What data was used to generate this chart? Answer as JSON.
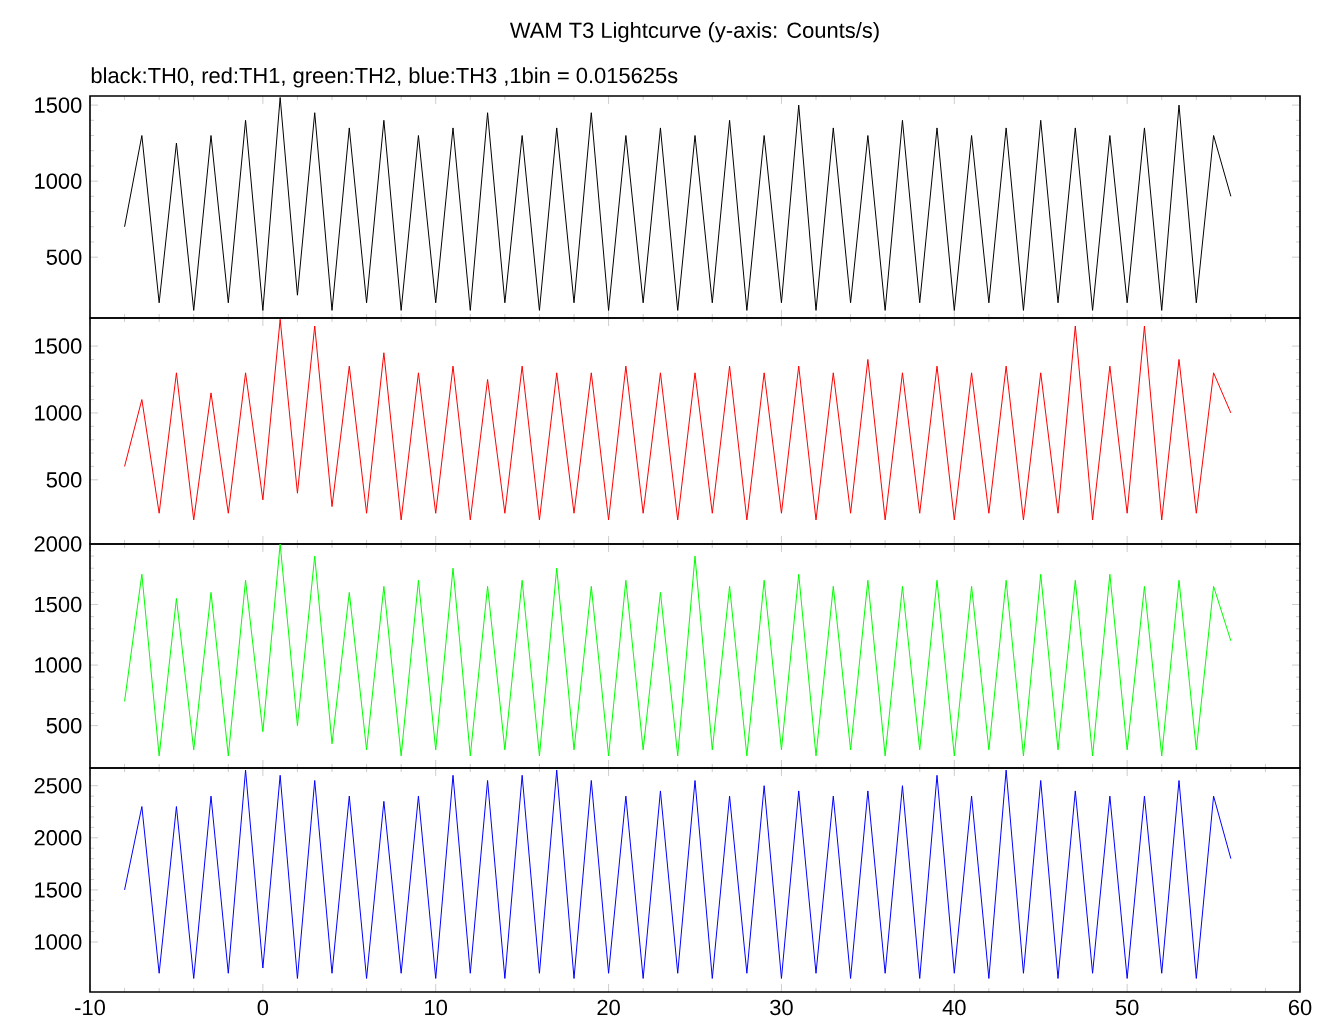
{
  "chart_data": [
    {
      "type": "line",
      "title": "WAM T3 Lightcurve (y-axis: Counts/s)",
      "subtitle": "black:TH0, red:TH1, green:TH2, blue:TH3 ,1bin = 0.015625s",
      "color": "#000000",
      "xlim": [
        -10,
        60
      ],
      "xticks": [
        -10,
        0,
        10,
        20,
        30,
        40,
        50,
        60
      ],
      "ylim": [
        100,
        1560
      ],
      "yticks": [
        500,
        1000,
        1500
      ],
      "tick_labels": "y",
      "x": [
        -8,
        -7,
        -6,
        -5,
        -4,
        -3,
        -2,
        -1,
        0,
        1,
        2,
        3,
        4,
        5,
        6,
        7,
        8,
        9,
        10,
        11,
        12,
        13,
        14,
        15,
        16,
        17,
        18,
        19,
        20,
        21,
        22,
        23,
        24,
        25,
        26,
        27,
        28,
        29,
        30,
        31,
        32,
        33,
        34,
        35,
        36,
        37,
        38,
        39,
        40,
        41,
        42,
        43,
        44,
        45,
        46,
        47,
        48,
        49,
        50,
        51,
        52,
        53,
        54,
        55,
        56
      ],
      "values": [
        700,
        1300,
        200,
        1250,
        150,
        1300,
        200,
        1400,
        150,
        1550,
        250,
        1450,
        150,
        1350,
        200,
        1400,
        150,
        1300,
        200,
        1350,
        150,
        1450,
        200,
        1300,
        150,
        1350,
        200,
        1450,
        150,
        1300,
        200,
        1350,
        150,
        1300,
        200,
        1400,
        150,
        1300,
        200,
        1500,
        150,
        1350,
        200,
        1300,
        150,
        1400,
        200,
        1350,
        150,
        1300,
        200,
        1350,
        150,
        1400,
        200,
        1350,
        150,
        1300,
        200,
        1350,
        150,
        1500,
        200,
        1300,
        900
      ]
    },
    {
      "type": "line",
      "color": "#ff0000",
      "xlim": [
        -10,
        60
      ],
      "xticks": [
        -10,
        0,
        10,
        20,
        30,
        40,
        50,
        60
      ],
      "ylim": [
        20,
        1710
      ],
      "yticks": [
        500,
        1000,
        1500
      ],
      "tick_labels": "y",
      "x": [
        -8,
        -7,
        -6,
        -5,
        -4,
        -3,
        -2,
        -1,
        0,
        1,
        2,
        3,
        4,
        5,
        6,
        7,
        8,
        9,
        10,
        11,
        12,
        13,
        14,
        15,
        16,
        17,
        18,
        19,
        20,
        21,
        22,
        23,
        24,
        25,
        26,
        27,
        28,
        29,
        30,
        31,
        32,
        33,
        34,
        35,
        36,
        37,
        38,
        39,
        40,
        41,
        42,
        43,
        44,
        45,
        46,
        47,
        48,
        49,
        50,
        51,
        52,
        53,
        54,
        55,
        56
      ],
      "values": [
        600,
        1100,
        250,
        1300,
        200,
        1150,
        250,
        1300,
        350,
        1700,
        400,
        1650,
        300,
        1350,
        250,
        1450,
        200,
        1300,
        250,
        1350,
        200,
        1250,
        250,
        1350,
        200,
        1300,
        250,
        1300,
        200,
        1350,
        250,
        1300,
        200,
        1300,
        250,
        1350,
        200,
        1300,
        250,
        1350,
        200,
        1300,
        250,
        1400,
        200,
        1300,
        250,
        1350,
        200,
        1300,
        250,
        1350,
        200,
        1300,
        250,
        1650,
        200,
        1350,
        250,
        1650,
        200,
        1400,
        250,
        1300,
        1000
      ]
    },
    {
      "type": "line",
      "color": "#00ff00",
      "xlim": [
        -10,
        60
      ],
      "xticks": [
        -10,
        0,
        10,
        20,
        30,
        40,
        50,
        60
      ],
      "ylim": [
        150,
        2000
      ],
      "yticks": [
        500,
        1000,
        1500,
        2000
      ],
      "tick_labels": "y",
      "x": [
        -8,
        -7,
        -6,
        -5,
        -4,
        -3,
        -2,
        -1,
        0,
        1,
        2,
        3,
        4,
        5,
        6,
        7,
        8,
        9,
        10,
        11,
        12,
        13,
        14,
        15,
        16,
        17,
        18,
        19,
        20,
        21,
        22,
        23,
        24,
        25,
        26,
        27,
        28,
        29,
        30,
        31,
        32,
        33,
        34,
        35,
        36,
        37,
        38,
        39,
        40,
        41,
        42,
        43,
        44,
        45,
        46,
        47,
        48,
        49,
        50,
        51,
        52,
        53,
        54,
        55,
        56
      ],
      "values": [
        700,
        1750,
        250,
        1550,
        300,
        1600,
        250,
        1700,
        450,
        2000,
        500,
        1900,
        350,
        1600,
        300,
        1650,
        250,
        1700,
        300,
        1800,
        250,
        1650,
        300,
        1700,
        250,
        1800,
        300,
        1650,
        250,
        1700,
        300,
        1600,
        250,
        1900,
        300,
        1650,
        250,
        1700,
        300,
        1750,
        250,
        1650,
        300,
        1700,
        250,
        1650,
        300,
        1700,
        250,
        1650,
        300,
        1700,
        250,
        1750,
        300,
        1700,
        250,
        1750,
        300,
        1650,
        250,
        1700,
        300,
        1650,
        1200
      ]
    },
    {
      "type": "line",
      "color": "#0000ff",
      "xlim": [
        -10,
        60
      ],
      "xticks": [
        -10,
        0,
        10,
        20,
        30,
        40,
        50,
        60
      ],
      "ylim": [
        520,
        2670
      ],
      "yticks": [
        1000,
        1500,
        2000,
        2500
      ],
      "x": [
        -8,
        -7,
        -6,
        -5,
        -4,
        -3,
        -2,
        -1,
        0,
        1,
        2,
        3,
        4,
        5,
        6,
        7,
        8,
        9,
        10,
        11,
        12,
        13,
        14,
        15,
        16,
        17,
        18,
        19,
        20,
        21,
        22,
        23,
        24,
        25,
        26,
        27,
        28,
        29,
        30,
        31,
        32,
        33,
        34,
        35,
        36,
        37,
        38,
        39,
        40,
        41,
        42,
        43,
        44,
        45,
        46,
        47,
        48,
        49,
        50,
        51,
        52,
        53,
        54,
        55,
        56
      ],
      "values": [
        1500,
        2300,
        700,
        2300,
        650,
        2400,
        700,
        2650,
        750,
        2600,
        650,
        2550,
        700,
        2400,
        650,
        2350,
        700,
        2400,
        650,
        2600,
        700,
        2550,
        650,
        2600,
        700,
        2650,
        650,
        2550,
        700,
        2400,
        650,
        2450,
        700,
        2550,
        650,
        2400,
        700,
        2500,
        650,
        2450,
        700,
        2400,
        650,
        2450,
        700,
        2500,
        650,
        2600,
        700,
        2400,
        650,
        2650,
        700,
        2550,
        650,
        2450,
        700,
        2400,
        650,
        2400,
        700,
        2550,
        650,
        2400,
        1800
      ]
    }
  ]
}
